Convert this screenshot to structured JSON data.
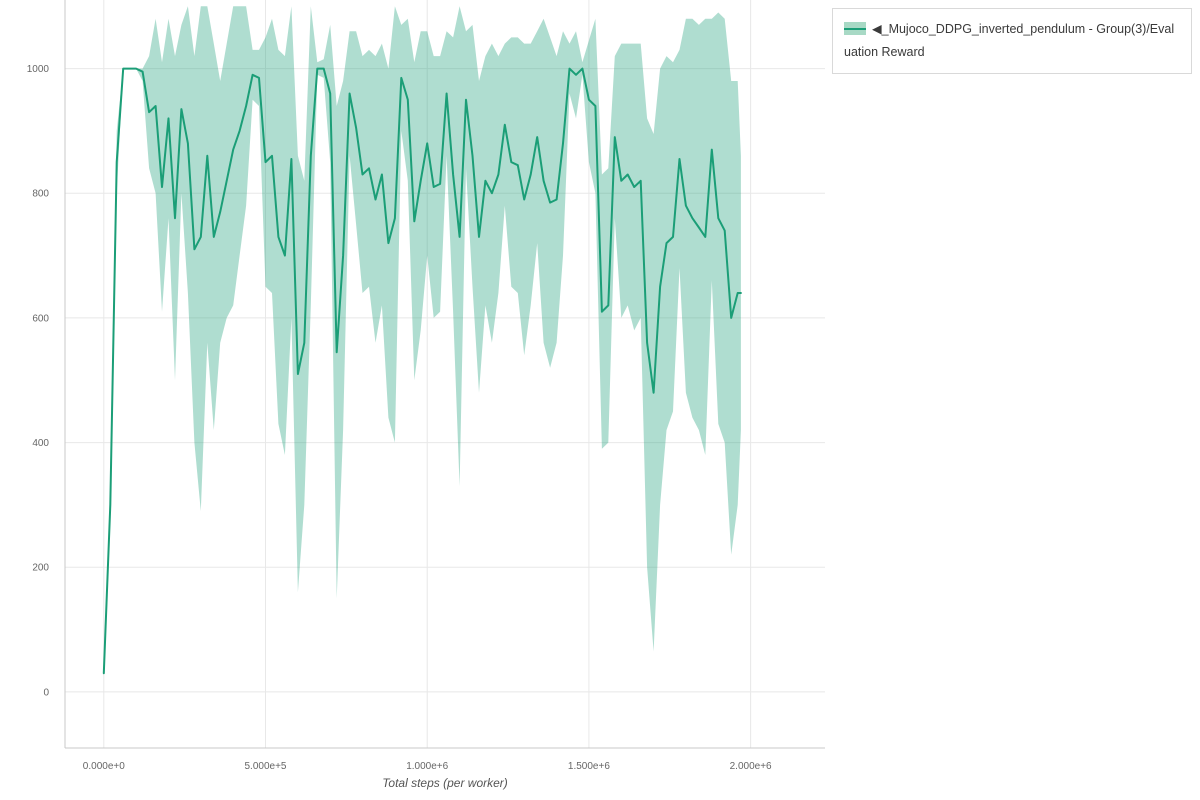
{
  "page": {
    "background": "#ffffff"
  },
  "legend": {
    "label": "◀_Mujoco_DDPG_inverted_pendulum - Group(3)/Evaluation Reward",
    "swatch_fill": "#a8d9c5",
    "swatch_line": "#1b9e77",
    "border_color": "#d9d9d9"
  },
  "chart_data": {
    "type": "line",
    "title": "",
    "xlabel": "Total steps (per worker)",
    "ylabel": "",
    "grid": true,
    "legend_position": "top-right-outside",
    "xlim": [
      -120000,
      2230000
    ],
    "ylim": [
      -90,
      1110
    ],
    "x_ticks": [
      {
        "value": 0,
        "label": "0.000e+0"
      },
      {
        "value": 500000,
        "label": "5.000e+5"
      },
      {
        "value": 1000000,
        "label": "1.000e+6"
      },
      {
        "value": 1500000,
        "label": "1.500e+6"
      },
      {
        "value": 2000000,
        "label": "2.000e+6"
      }
    ],
    "y_ticks": [
      {
        "value": 0,
        "label": "0"
      },
      {
        "value": 200,
        "label": "200"
      },
      {
        "value": 400,
        "label": "400"
      },
      {
        "value": 600,
        "label": "600"
      },
      {
        "value": 800,
        "label": "800"
      },
      {
        "value": 1000,
        "label": "1000"
      }
    ],
    "colors": {
      "grid": "#e8e8e8",
      "spine": "#c9c9c9",
      "tick_label": "#666666"
    },
    "series": [
      {
        "name": "◀_Mujoco_DDPG_inverted_pendulum - Group(3)/Evaluation Reward",
        "color": "#1b9e77",
        "band_color": "rgba(27,158,119,0.35)",
        "x": [
          0,
          20000,
          40000,
          60000,
          80000,
          100000,
          120000,
          140000,
          160000,
          180000,
          200000,
          220000,
          240000,
          260000,
          280000,
          300000,
          320000,
          340000,
          360000,
          380000,
          400000,
          420000,
          440000,
          460000,
          480000,
          500000,
          520000,
          540000,
          560000,
          580000,
          600000,
          620000,
          640000,
          660000,
          680000,
          700000,
          720000,
          740000,
          760000,
          780000,
          800000,
          820000,
          840000,
          860000,
          880000,
          900000,
          920000,
          940000,
          960000,
          980000,
          1000000,
          1020000,
          1040000,
          1060000,
          1080000,
          1100000,
          1120000,
          1140000,
          1160000,
          1180000,
          1200000,
          1220000,
          1240000,
          1260000,
          1280000,
          1300000,
          1320000,
          1340000,
          1360000,
          1380000,
          1400000,
          1420000,
          1440000,
          1460000,
          1480000,
          1500000,
          1520000,
          1540000,
          1560000,
          1580000,
          1600000,
          1620000,
          1640000,
          1660000,
          1680000,
          1700000,
          1720000,
          1740000,
          1760000,
          1780000,
          1800000,
          1820000,
          1840000,
          1860000,
          1880000,
          1900000,
          1920000,
          1940000,
          1960000,
          1970000
        ],
        "mean": [
          30,
          300,
          850,
          1000,
          1000,
          1000,
          995,
          930,
          940,
          810,
          920,
          760,
          935,
          880,
          710,
          730,
          860,
          730,
          770,
          820,
          870,
          900,
          940,
          990,
          985,
          850,
          860,
          730,
          700,
          855,
          510,
          560,
          860,
          1000,
          1000,
          960,
          545,
          700,
          960,
          905,
          830,
          840,
          790,
          830,
          720,
          760,
          985,
          950,
          755,
          820,
          880,
          810,
          815,
          960,
          830,
          730,
          950,
          860,
          730,
          820,
          800,
          830,
          910,
          850,
          845,
          790,
          830,
          890,
          820,
          785,
          790,
          880,
          1000,
          990,
          1000,
          950,
          940,
          610,
          620,
          890,
          820,
          830,
          810,
          820,
          560,
          480,
          650,
          720,
          730,
          855,
          780,
          760,
          745,
          730,
          870,
          760,
          740,
          600,
          640,
          640
        ],
        "lower": [
          25,
          280,
          800,
          1000,
          1000,
          1000,
          980,
          840,
          800,
          610,
          760,
          500,
          800,
          640,
          400,
          290,
          560,
          420,
          560,
          600,
          620,
          700,
          780,
          950,
          940,
          650,
          640,
          430,
          380,
          600,
          160,
          300,
          620,
          990,
          985,
          850,
          150,
          420,
          860,
          750,
          640,
          650,
          560,
          620,
          440,
          400,
          900,
          820,
          500,
          580,
          700,
          600,
          610,
          860,
          610,
          330,
          840,
          650,
          480,
          620,
          560,
          640,
          780,
          650,
          640,
          540,
          620,
          720,
          560,
          520,
          560,
          700,
          960,
          920,
          990,
          850,
          800,
          390,
          400,
          760,
          600,
          620,
          580,
          600,
          200,
          65,
          300,
          420,
          450,
          680,
          480,
          440,
          420,
          380,
          660,
          430,
          400,
          220,
          300,
          420
        ],
        "upper": [
          40,
          330,
          900,
          1000,
          1000,
          1000,
          1000,
          1020,
          1080,
          1010,
          1080,
          1020,
          1070,
          1100,
          1020,
          1100,
          1100,
          1040,
          980,
          1040,
          1100,
          1100,
          1100,
          1030,
          1030,
          1050,
          1080,
          1030,
          1020,
          1100,
          860,
          820,
          1100,
          1010,
          1015,
          1070,
          940,
          980,
          1060,
          1060,
          1020,
          1030,
          1020,
          1040,
          1000,
          1100,
          1070,
          1080,
          1010,
          1060,
          1060,
          1020,
          1020,
          1060,
          1050,
          1100,
          1060,
          1070,
          980,
          1020,
          1040,
          1020,
          1040,
          1050,
          1050,
          1040,
          1040,
          1060,
          1080,
          1050,
          1020,
          1060,
          1040,
          1060,
          1010,
          1045,
          1080,
          830,
          840,
          1020,
          1040,
          1040,
          1040,
          1040,
          920,
          895,
          1000,
          1020,
          1010,
          1030,
          1080,
          1080,
          1070,
          1080,
          1080,
          1090,
          1080,
          980,
          980,
          860
        ]
      }
    ]
  }
}
